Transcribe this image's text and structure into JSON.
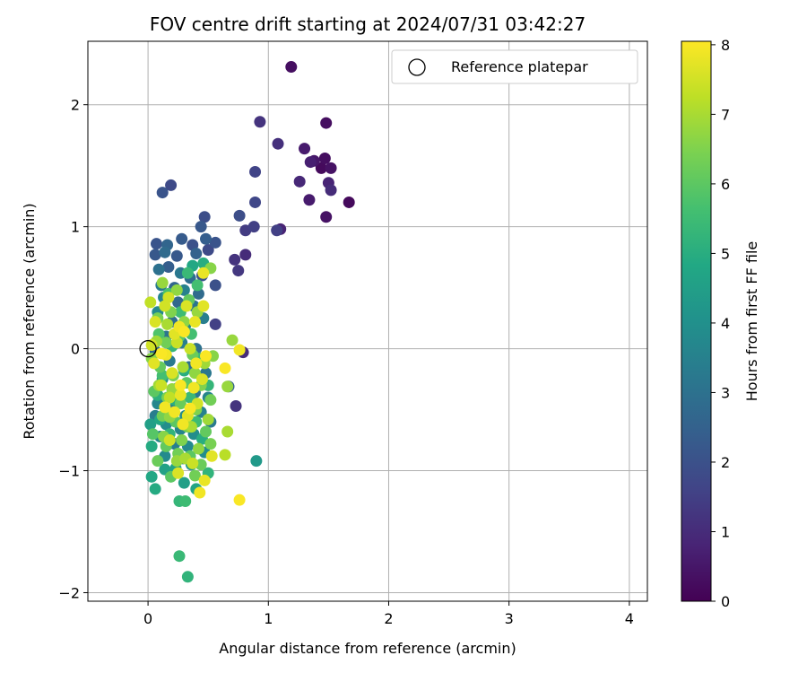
{
  "chart_data": {
    "type": "scatter",
    "title": "FOV centre drift starting at 2024/07/31 03:42:27",
    "xlabel": "Angular distance from reference (arcmin)",
    "ylabel": "Rotation from reference (arcmin)",
    "xlim": [
      -0.5,
      4.15
    ],
    "ylim": [
      -2.07,
      2.52
    ],
    "xticks": [
      0,
      1,
      2,
      3,
      4
    ],
    "yticks": [
      -2,
      -1,
      0,
      1,
      2
    ],
    "xtick_labels": [
      "0",
      "1",
      "2",
      "3",
      "4"
    ],
    "ytick_labels": [
      "−2",
      "−1",
      "0",
      "1",
      "2"
    ],
    "grid": true,
    "legend": {
      "position": "top-right",
      "entries": [
        "Reference platepar"
      ]
    },
    "reference_point": {
      "x": 0,
      "y": 0,
      "marker": "open-circle"
    },
    "colorbar": {
      "label": "Hours from first FF file",
      "colormap": "viridis",
      "range": [
        0,
        8.05
      ],
      "ticks": [
        0,
        1,
        2,
        3,
        4,
        5,
        6,
        7,
        8
      ],
      "tick_labels": [
        "0",
        "1",
        "2",
        "3",
        "4",
        "5",
        "6",
        "7",
        "8"
      ]
    },
    "points": [
      [
        1.19,
        2.31,
        0.3
      ],
      [
        1.48,
        1.85,
        0.3
      ],
      [
        1.67,
        1.2,
        0.2
      ],
      [
        1.48,
        1.08,
        0.4
      ],
      [
        1.52,
        1.48,
        0.4
      ],
      [
        1.44,
        1.48,
        0.2
      ],
      [
        1.38,
        1.54,
        0.5
      ],
      [
        1.47,
        1.56,
        0.3
      ],
      [
        1.3,
        1.64,
        0.6
      ],
      [
        1.35,
        1.53,
        0.7
      ],
      [
        1.5,
        1.36,
        0.8
      ],
      [
        1.52,
        1.3,
        1.0
      ],
      [
        1.26,
        1.37,
        0.9
      ],
      [
        1.34,
        1.22,
        0.6
      ],
      [
        1.1,
        0.98,
        0.8
      ],
      [
        1.08,
        1.68,
        1.1
      ],
      [
        0.93,
        1.86,
        1.2
      ],
      [
        0.89,
        1.45,
        1.6
      ],
      [
        0.89,
        1.2,
        1.7
      ],
      [
        1.07,
        0.97,
        1.5
      ],
      [
        0.76,
        1.09,
        1.9
      ],
      [
        0.81,
        0.97,
        1.4
      ],
      [
        0.88,
        1.0,
        1.5
      ],
      [
        0.72,
        0.73,
        1.2
      ],
      [
        0.75,
        0.64,
        1.3
      ],
      [
        0.81,
        0.77,
        1.0
      ],
      [
        0.56,
        0.2,
        1.5
      ],
      [
        0.79,
        -0.03,
        1.0
      ],
      [
        0.73,
        -0.47,
        1.2
      ],
      [
        0.67,
        -0.31,
        2.5
      ],
      [
        0.12,
        1.28,
        2.1
      ],
      [
        0.19,
        1.34,
        1.8
      ],
      [
        0.47,
        1.08,
        1.9
      ],
      [
        0.44,
        1.0,
        2.2
      ],
      [
        0.28,
        0.9,
        2.3
      ],
      [
        0.07,
        0.86,
        2.1
      ],
      [
        0.16,
        0.85,
        2.6
      ],
      [
        0.37,
        0.85,
        2.0
      ],
      [
        0.48,
        0.9,
        2.4
      ],
      [
        0.56,
        0.87,
        2.1
      ],
      [
        0.06,
        0.77,
        2.2
      ],
      [
        0.14,
        0.79,
        2.8
      ],
      [
        0.24,
        0.76,
        2.2
      ],
      [
        0.4,
        0.78,
        2.5
      ],
      [
        0.5,
        0.81,
        1.8
      ],
      [
        0.09,
        0.65,
        3.0
      ],
      [
        0.17,
        0.67,
        2.4
      ],
      [
        0.27,
        0.62,
        3.2
      ],
      [
        0.35,
        0.58,
        2.9
      ],
      [
        0.45,
        0.6,
        2.1
      ],
      [
        0.56,
        0.52,
        2.0
      ],
      [
        0.11,
        0.52,
        3.3
      ],
      [
        0.22,
        0.5,
        2.6
      ],
      [
        0.3,
        0.48,
        3.5
      ],
      [
        0.42,
        0.45,
        2.8
      ],
      [
        0.13,
        0.42,
        3.6
      ],
      [
        0.25,
        0.38,
        2.7
      ],
      [
        0.38,
        0.35,
        3.1
      ],
      [
        0.46,
        0.25,
        3.4
      ],
      [
        0.08,
        0.3,
        3.8
      ],
      [
        0.2,
        0.22,
        2.9
      ],
      [
        0.31,
        0.19,
        3.7
      ],
      [
        0.15,
        0.1,
        3.1
      ],
      [
        0.28,
        0.05,
        3.4
      ],
      [
        0.4,
        0.0,
        3.0
      ],
      [
        0.06,
        -0.02,
        2.7
      ],
      [
        0.18,
        -0.1,
        3.3
      ],
      [
        0.34,
        -0.15,
        2.9
      ],
      [
        0.48,
        -0.2,
        3.2
      ],
      [
        0.12,
        -0.25,
        3.9
      ],
      [
        0.25,
        -0.32,
        3.5
      ],
      [
        0.39,
        -0.36,
        3.2
      ],
      [
        0.5,
        -0.4,
        3.6
      ],
      [
        0.08,
        -0.45,
        3.7
      ],
      [
        0.2,
        -0.5,
        3.3
      ],
      [
        0.31,
        -0.55,
        3.8
      ],
      [
        0.44,
        -0.52,
        3.5
      ],
      [
        0.06,
        -0.55,
        3.4
      ],
      [
        0.15,
        -0.62,
        3.9
      ],
      [
        0.27,
        -0.66,
        3.6
      ],
      [
        0.38,
        -0.7,
        3.9
      ],
      [
        0.52,
        -0.6,
        3.3
      ],
      [
        0.1,
        -0.72,
        3.7
      ],
      [
        0.22,
        -0.78,
        3.4
      ],
      [
        0.33,
        -0.8,
        3.8
      ],
      [
        0.14,
        -0.88,
        3.8
      ],
      [
        0.29,
        -0.9,
        3.6
      ],
      [
        0.47,
        -0.85,
        3.9
      ],
      [
        0.9,
        -0.92,
        4.3
      ],
      [
        0.36,
        -0.95,
        4.2
      ],
      [
        0.14,
        -0.99,
        4.6
      ],
      [
        0.23,
        -0.98,
        4.7
      ],
      [
        0.03,
        -1.05,
        4.8
      ],
      [
        0.06,
        -1.15,
        4.9
      ],
      [
        0.3,
        -1.1,
        4.5
      ],
      [
        0.4,
        -1.15,
        4.7
      ],
      [
        0.02,
        -0.62,
        4.5
      ],
      [
        0.1,
        -0.58,
        4.8
      ],
      [
        0.26,
        -1.7,
        5.4
      ],
      [
        0.33,
        -1.87,
        5.2
      ],
      [
        0.26,
        -1.25,
        5.3
      ],
      [
        0.31,
        -1.25,
        5.5
      ],
      [
        0.5,
        -1.02,
        5.2
      ],
      [
        0.03,
        -0.8,
        4.9
      ],
      [
        0.18,
        -0.7,
        5.2
      ],
      [
        0.45,
        -0.74,
        5.0
      ],
      [
        0.4,
        -0.6,
        5.5
      ],
      [
        0.08,
        -0.38,
        5.1
      ],
      [
        0.35,
        -0.4,
        5.4
      ],
      [
        0.22,
        -0.42,
        5.0
      ],
      [
        0.5,
        -0.3,
        5.3
      ],
      [
        0.12,
        -0.22,
        5.6
      ],
      [
        0.3,
        -0.18,
        5.0
      ],
      [
        0.43,
        -0.08,
        5.5
      ],
      [
        0.2,
        0.02,
        5.3
      ],
      [
        0.36,
        0.12,
        5.6
      ],
      [
        0.09,
        0.12,
        5.8
      ],
      [
        0.27,
        0.3,
        5.5
      ],
      [
        0.17,
        0.45,
        5.7
      ],
      [
        0.41,
        0.52,
        5.6
      ],
      [
        0.33,
        0.62,
        5.4
      ],
      [
        0.46,
        0.7,
        5.0
      ],
      [
        0.37,
        0.68,
        4.8
      ],
      [
        0.04,
        -0.7,
        5.9
      ],
      [
        0.15,
        -0.8,
        6.1
      ],
      [
        0.25,
        -0.86,
        6.3
      ],
      [
        0.35,
        -0.88,
        6.0
      ],
      [
        0.44,
        -0.95,
        6.2
      ],
      [
        0.52,
        -0.78,
        6.4
      ],
      [
        0.08,
        -0.92,
        6.2
      ],
      [
        0.19,
        -1.05,
        6.0
      ],
      [
        0.39,
        -1.04,
        6.3
      ],
      [
        0.28,
        -0.75,
        6.5
      ],
      [
        0.12,
        -0.55,
        6.3
      ],
      [
        0.23,
        -0.6,
        6.0
      ],
      [
        0.33,
        -0.64,
        6.4
      ],
      [
        0.48,
        -0.68,
        6.1
      ],
      [
        0.05,
        -0.35,
        6.0
      ],
      [
        0.16,
        -0.4,
        6.4
      ],
      [
        0.27,
        -0.45,
        6.2
      ],
      [
        0.4,
        -0.5,
        6.5
      ],
      [
        0.52,
        -0.42,
        6.3
      ],
      [
        0.1,
        -0.15,
        6.1
      ],
      [
        0.21,
        -0.22,
        6.4
      ],
      [
        0.32,
        -0.28,
        6.0
      ],
      [
        0.44,
        -0.3,
        6.5
      ],
      [
        0.15,
        0.05,
        6.3
      ],
      [
        0.26,
        0.1,
        6.0
      ],
      [
        0.37,
        -0.05,
        6.2
      ],
      [
        0.08,
        0.25,
        6.4
      ],
      [
        0.19,
        0.3,
        6.5
      ],
      [
        0.34,
        0.4,
        6.1
      ],
      [
        0.52,
        0.66,
        6.6
      ],
      [
        0.12,
        0.54,
        6.8
      ],
      [
        0.03,
        -0.08,
        6.6
      ],
      [
        0.09,
        -0.3,
        6.9
      ],
      [
        0.18,
        -0.56,
        6.7
      ],
      [
        0.24,
        -0.92,
        6.8
      ],
      [
        0.31,
        -0.9,
        7.0
      ],
      [
        0.42,
        -0.82,
        6.7
      ],
      [
        0.5,
        -0.58,
        6.9
      ],
      [
        0.13,
        -0.72,
        6.6
      ],
      [
        0.36,
        -0.64,
        7.0
      ],
      [
        0.2,
        -0.33,
        6.8
      ],
      [
        0.29,
        -0.15,
        7.0
      ],
      [
        0.39,
        -0.2,
        6.7
      ],
      [
        0.47,
        -0.12,
        6.9
      ],
      [
        0.54,
        -0.06,
        6.6
      ],
      [
        0.07,
        0.06,
        6.9
      ],
      [
        0.16,
        0.2,
        7.0
      ],
      [
        0.3,
        0.22,
        6.7
      ],
      [
        0.41,
        0.3,
        6.8
      ],
      [
        0.24,
        0.48,
        6.7
      ],
      [
        0.66,
        -0.31,
        6.8
      ],
      [
        0.66,
        -0.68,
        7.0
      ],
      [
        0.7,
        0.07,
        6.8
      ],
      [
        0.64,
        -0.87,
        7.2
      ],
      [
        0.02,
        0.38,
        7.3
      ],
      [
        0.06,
        0.22,
        7.6
      ],
      [
        0.14,
        0.35,
        7.5
      ],
      [
        0.22,
        0.12,
        7.7
      ],
      [
        0.35,
        0.0,
        7.4
      ],
      [
        0.45,
        -0.25,
        7.6
      ],
      [
        0.27,
        -0.38,
        7.8
      ],
      [
        0.11,
        -0.3,
        7.4
      ],
      [
        0.33,
        -0.55,
        7.7
      ],
      [
        0.18,
        -0.75,
        7.5
      ],
      [
        0.25,
        -1.02,
        7.6
      ],
      [
        0.47,
        -1.08,
        7.8
      ],
      [
        0.37,
        -0.94,
        7.4
      ],
      [
        0.29,
        -0.62,
        7.9
      ],
      [
        0.41,
        -0.45,
        7.5
      ],
      [
        0.05,
        -0.12,
        7.7
      ],
      [
        0.15,
        -0.05,
        7.9
      ],
      [
        0.24,
        0.05,
        7.4
      ],
      [
        0.32,
        0.35,
        7.6
      ],
      [
        0.46,
        0.62,
        7.8
      ],
      [
        0.46,
        0.35,
        7.7
      ],
      [
        0.26,
        0.18,
        7.9
      ],
      [
        0.17,
        0.42,
        7.5
      ],
      [
        0.39,
        0.22,
        7.8
      ],
      [
        0.2,
        -0.2,
        7.6
      ],
      [
        0.4,
        -0.12,
        7.9
      ],
      [
        0.03,
        0.03,
        7.5
      ],
      [
        0.76,
        -1.24,
        8.0
      ],
      [
        0.64,
        -0.16,
        8.0
      ],
      [
        0.76,
        -0.01,
        7.9
      ],
      [
        0.43,
        -1.18,
        7.9
      ],
      [
        0.35,
        -0.49,
        8.0
      ],
      [
        0.22,
        -0.52,
        7.9
      ],
      [
        0.11,
        -0.04,
        8.0
      ],
      [
        0.3,
        0.14,
        8.0
      ],
      [
        0.48,
        -0.06,
        8.0
      ],
      [
        0.27,
        -0.3,
        8.0
      ],
      [
        0.38,
        -0.32,
        7.9
      ],
      [
        0.14,
        -0.48,
        7.9
      ],
      [
        0.53,
        -0.88,
        7.7
      ],
      [
        0.18,
        -0.4,
        7.3
      ]
    ]
  }
}
